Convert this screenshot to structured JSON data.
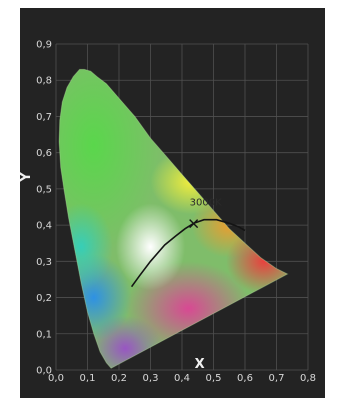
{
  "chart_data": {
    "type": "scatter",
    "title": "",
    "xlabel": "X",
    "ylabel": "Y",
    "xlim": [
      0.0,
      0.8
    ],
    "ylim": [
      0.0,
      0.9
    ],
    "x_ticks": [
      "0,0",
      "0,1",
      "0,2",
      "0,3",
      "0,4",
      "0,5",
      "0,6",
      "0,7",
      "0,8"
    ],
    "y_ticks": [
      "0,0",
      "0,1",
      "0,2",
      "0,3",
      "0,4",
      "0,5",
      "0,6",
      "0,7",
      "0,8",
      "0,9"
    ],
    "grid": true,
    "background_color": "#232323",
    "grid_color": "#505050",
    "locus": {
      "x": [
        0.175,
        0.16,
        0.14,
        0.12,
        0.1,
        0.08,
        0.06,
        0.04,
        0.025,
        0.015,
        0.01,
        0.012,
        0.02,
        0.035,
        0.055,
        0.075,
        0.09,
        0.11,
        0.13,
        0.16,
        0.2,
        0.25,
        0.3,
        0.35,
        0.4,
        0.45,
        0.5,
        0.55,
        0.6,
        0.65,
        0.7,
        0.735
      ],
      "y": [
        0.005,
        0.02,
        0.05,
        0.1,
        0.16,
        0.24,
        0.33,
        0.42,
        0.5,
        0.56,
        0.63,
        0.69,
        0.74,
        0.78,
        0.81,
        0.83,
        0.83,
        0.825,
        0.81,
        0.79,
        0.75,
        0.7,
        0.64,
        0.59,
        0.54,
        0.49,
        0.44,
        0.39,
        0.35,
        0.31,
        0.28,
        0.265
      ]
    },
    "planckian_locus": {
      "x": [
        0.24,
        0.265,
        0.3,
        0.345,
        0.38,
        0.41,
        0.437,
        0.47,
        0.51,
        0.55,
        0.58,
        0.6
      ],
      "y": [
        0.23,
        0.26,
        0.3,
        0.345,
        0.37,
        0.39,
        0.405,
        0.415,
        0.415,
        0.405,
        0.395,
        0.385
      ]
    },
    "annotations": [
      {
        "text": "3000K",
        "x": 0.437,
        "y": 0.404
      }
    ]
  }
}
